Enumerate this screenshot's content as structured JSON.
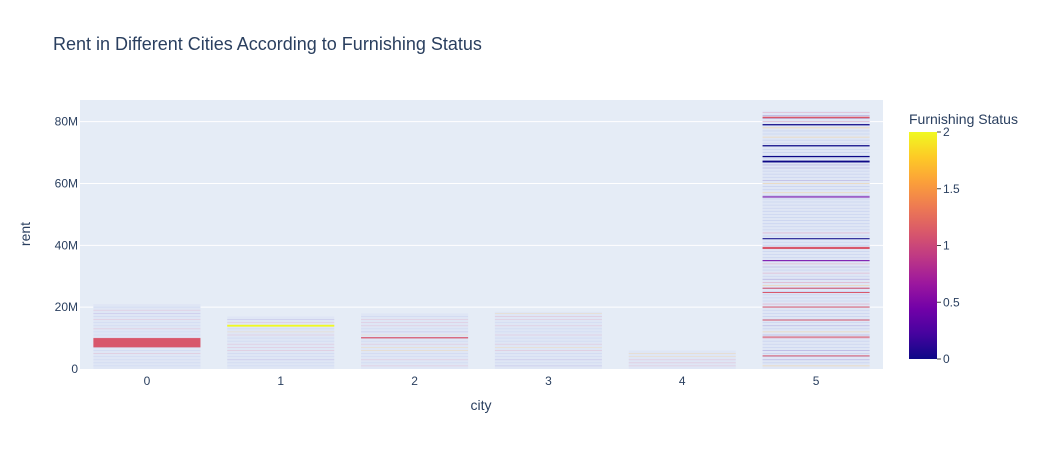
{
  "chart_data": {
    "type": "bar",
    "title": "Rent in Different Cities According to Furnishing Status",
    "xlabel": "city",
    "ylabel": "rent",
    "categories": [
      "0",
      "1",
      "2",
      "3",
      "4",
      "5"
    ],
    "ylim": [
      0,
      87000000
    ],
    "y_ticks": [
      {
        "value": 0,
        "label": "0"
      },
      {
        "value": 20000000,
        "label": "20M"
      },
      {
        "value": 40000000,
        "label": "40M"
      },
      {
        "value": 60000000,
        "label": "60M"
      },
      {
        "value": 80000000,
        "label": "80M"
      }
    ],
    "totals": [
      21000000,
      17000000,
      18000000,
      18500000,
      6000000,
      83500000
    ],
    "highlight_bands": [
      {
        "category": "0",
        "from": 7000000,
        "to": 10000000,
        "status": 1
      },
      {
        "category": "1",
        "from": 13700000,
        "to": 14300000,
        "status": 2
      },
      {
        "category": "2",
        "from": 9900000,
        "to": 10300000,
        "status": 1
      },
      {
        "category": "5",
        "from": 81100000,
        "to": 81600000,
        "status": 1
      },
      {
        "category": "5",
        "from": 78800000,
        "to": 79200000,
        "status": 0
      },
      {
        "category": "5",
        "from": 72000000,
        "to": 72400000,
        "status": 0
      },
      {
        "category": "5",
        "from": 68500000,
        "to": 68900000,
        "status": 0
      },
      {
        "category": "5",
        "from": 66800000,
        "to": 67400000,
        "status": 0
      },
      {
        "category": "5",
        "from": 55500000,
        "to": 55800000,
        "status": 0.5
      },
      {
        "category": "5",
        "from": 42000000,
        "to": 42300000,
        "status": 0
      },
      {
        "category": "5",
        "from": 38800000,
        "to": 39500000,
        "status": 1
      },
      {
        "category": "5",
        "from": 35000000,
        "to": 35200000,
        "status": 0.5
      },
      {
        "category": "5",
        "from": 26000000,
        "to": 26300000,
        "status": 1
      },
      {
        "category": "5",
        "from": 24600000,
        "to": 24900000,
        "status": 1
      },
      {
        "category": "5",
        "from": 20000000,
        "to": 20200000,
        "status": 1
      },
      {
        "category": "5",
        "from": 15700000,
        "to": 16000000,
        "status": 1
      },
      {
        "category": "5",
        "from": 10300000,
        "to": 10500000,
        "status": 1
      },
      {
        "category": "5",
        "from": 4200000,
        "to": 4400000,
        "status": 1
      }
    ],
    "colorbar": {
      "title": "Furnishing Status",
      "min": 0,
      "max": 2,
      "ticks": [
        {
          "value": 0,
          "label": "0"
        },
        {
          "value": 0.5,
          "label": "0.5"
        },
        {
          "value": 1,
          "label": "1"
        },
        {
          "value": 1.5,
          "label": "1.5"
        },
        {
          "value": 2,
          "label": "2"
        }
      ],
      "colors": [
        "#0d0887",
        "#46039f",
        "#7201a8",
        "#9c179e",
        "#bd3786",
        "#d8576b",
        "#ed7953",
        "#fb9f3a",
        "#fdca26",
        "#f0f921"
      ]
    }
  }
}
